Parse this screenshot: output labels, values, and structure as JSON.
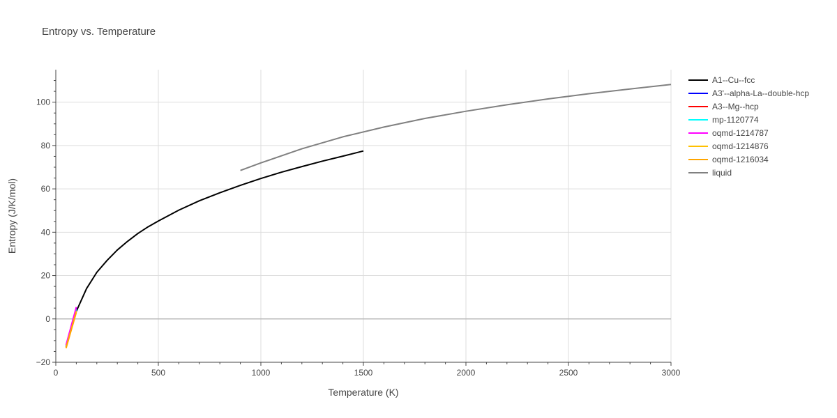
{
  "chart_data": {
    "type": "line",
    "title": "Entropy vs. Temperature",
    "xlabel": "Temperature (K)",
    "ylabel": "Entropy (J/K/mol)",
    "xlim": [
      0,
      3000
    ],
    "ylim": [
      -20,
      115
    ],
    "xticks": [
      0,
      500,
      1000,
      1500,
      2000,
      2500,
      3000
    ],
    "yticks": [
      -20,
      0,
      20,
      40,
      60,
      80,
      100
    ],
    "grid": true,
    "legend_position": "right",
    "series": [
      {
        "name": "A1--Cu--fcc",
        "color": "#000000",
        "x": [
          100,
          150,
          200,
          250,
          300,
          350,
          400,
          450,
          500,
          600,
          700,
          800,
          900,
          1000,
          1100,
          1200,
          1300,
          1400,
          1500
        ],
        "y": [
          3.5,
          14,
          21.5,
          27,
          31.8,
          35.8,
          39.4,
          42.5,
          45.2,
          50.2,
          54.5,
          58.2,
          61.6,
          64.8,
          67.7,
          70.3,
          72.8,
          75.1,
          77.5
        ]
      },
      {
        "name": "A3'--alpha-La--double-hcp",
        "color": "#0000ff",
        "x": [
          50,
          100
        ],
        "y": [
          -12.5,
          5
        ]
      },
      {
        "name": "A3--Mg--hcp",
        "color": "#ff0000",
        "x": [
          50,
          100
        ],
        "y": [
          -13,
          4
        ]
      },
      {
        "name": "mp-1120774",
        "color": "#00ffff",
        "x": [
          50,
          100
        ],
        "y": [
          -12.5,
          4.5
        ]
      },
      {
        "name": "oqmd-1214787",
        "color": "#ff00ff",
        "x": [
          50,
          100
        ],
        "y": [
          -12,
          5.5
        ]
      },
      {
        "name": "oqmd-1214876",
        "color": "#ffc000",
        "x": [
          50,
          100
        ],
        "y": [
          -13.2,
          3.5
        ]
      },
      {
        "name": "oqmd-1216034",
        "color": "#ffa500",
        "x": [
          50,
          100
        ],
        "y": [
          -13.5,
          3
        ]
      },
      {
        "name": "liquid",
        "color": "#808080",
        "x": [
          900,
          1000,
          1200,
          1400,
          1600,
          1800,
          2000,
          2200,
          2400,
          2600,
          2800,
          3000
        ],
        "y": [
          68.5,
          72,
          78.5,
          84,
          88.5,
          92.5,
          95.8,
          98.8,
          101.5,
          103.9,
          106.1,
          108.2
        ]
      }
    ]
  }
}
